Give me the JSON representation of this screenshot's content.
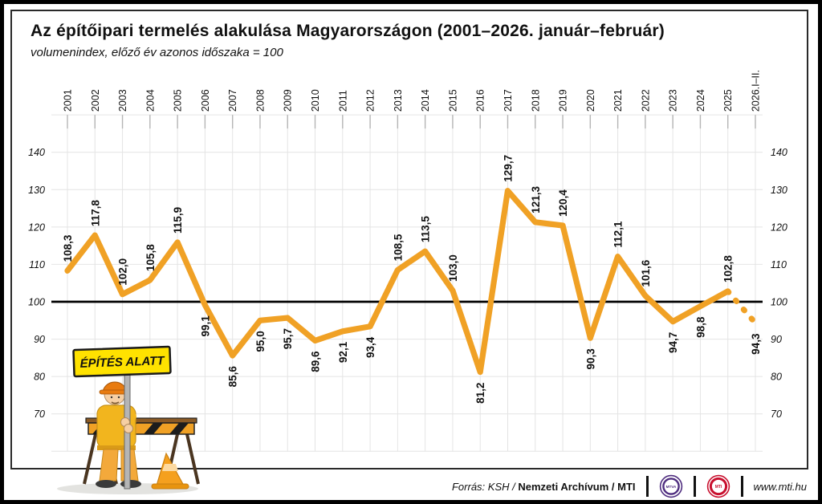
{
  "title": "Az építőipari termelés alakulása Magyarországon (2001–2026. január–február)",
  "subtitle": "volumenindex, előző év azonos időszaka = 100",
  "chart_data": {
    "type": "line",
    "categories": [
      "2001",
      "2002",
      "2003",
      "2004",
      "2005",
      "2006",
      "2007",
      "2008",
      "2009",
      "2010",
      "2011",
      "2012",
      "2013",
      "2014",
      "2015",
      "2016",
      "2017",
      "2018",
      "2019",
      "2020",
      "2021",
      "2022",
      "2023",
      "2024",
      "2025",
      "2026.I–II."
    ],
    "values": [
      108.3,
      117.8,
      102.0,
      105.8,
      115.9,
      99.1,
      85.6,
      95.0,
      95.7,
      89.6,
      92.1,
      93.4,
      108.5,
      113.5,
      103.0,
      81.2,
      129.7,
      121.3,
      120.4,
      90.3,
      112.1,
      101.6,
      94.7,
      98.8,
      102.8,
      94.3
    ],
    "point_labels": [
      "108,3",
      "117,8",
      "102,0",
      "105,8",
      "115,9",
      "99,1",
      "85,6",
      "95,0",
      "95,7",
      "89,6",
      "92,1",
      "93,4",
      "108,5",
      "113,5",
      "103,0",
      "81,2",
      "129,7",
      "121,3",
      "120,4",
      "90,3",
      "112,1",
      "101,6",
      "94,7",
      "98,8",
      "102,8",
      "94,3"
    ],
    "label_side": [
      "above",
      "above",
      "above",
      "above",
      "above",
      "below",
      "below",
      "below",
      "below",
      "below",
      "below",
      "below",
      "above",
      "above",
      "above",
      "below",
      "above",
      "above",
      "above",
      "below",
      "above",
      "above",
      "below",
      "below",
      "above",
      "below"
    ],
    "dashed_last_segment": true,
    "reference_line": 100,
    "ylim": [
      60,
      150
    ],
    "yticks": [
      70,
      80,
      90,
      100,
      110,
      120,
      130,
      140
    ],
    "grid": true,
    "legend": "none",
    "line_color": "#F0A125",
    "reference_color": "#000000",
    "grid_color": "#e4e4e4",
    "xlabel": "",
    "ylabel": ""
  },
  "mascot": {
    "sign_text": "ÉPÍTÉS ALATT"
  },
  "footer": {
    "source_label": "Forrás: KSH /",
    "source_archive": "Nemzeti Archívum",
    "source_mti": "/ MTI",
    "mtva_logo_text": "MTVA",
    "mti_logo_text": "MTI",
    "website": "www.mti.hu",
    "mtva_color": "#4f2d7f",
    "mti_color": "#c8102e"
  }
}
